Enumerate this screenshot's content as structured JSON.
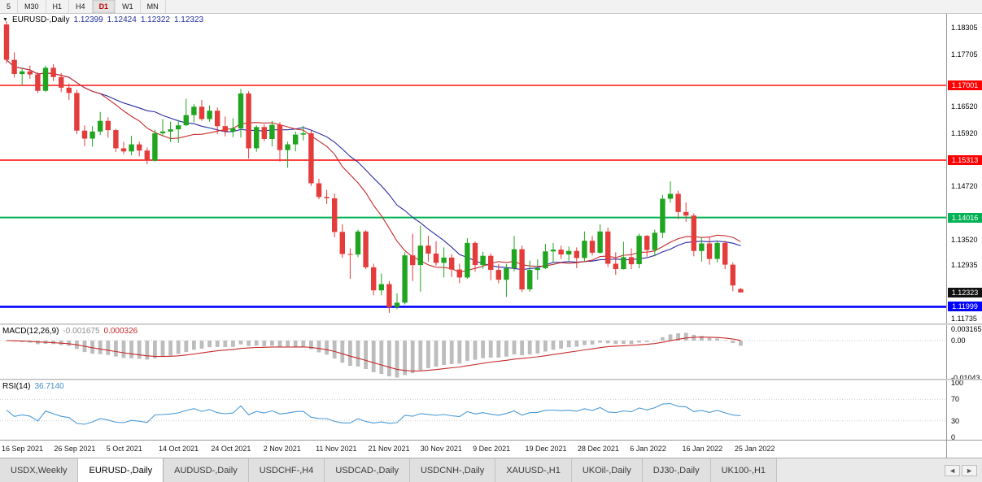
{
  "toolbar": {
    "timeframes": [
      {
        "label": "5",
        "active": false
      },
      {
        "label": "M30",
        "active": false
      },
      {
        "label": "H1",
        "active": false
      },
      {
        "label": "H4",
        "active": false
      },
      {
        "label": "D1",
        "active": true
      },
      {
        "label": "W1",
        "active": false
      },
      {
        "label": "MN",
        "active": false
      }
    ]
  },
  "chart_header": {
    "dropdown_glyph": "▼",
    "symbol": "EURUSD-,Daily",
    "open": "1.12399",
    "high": "1.12424",
    "low": "1.12322",
    "close": "1.12323"
  },
  "indicators": {
    "macd": {
      "label": "MACD(12,26,9)",
      "value_main": "-0.001675",
      "value_signal": "0.000326"
    },
    "rsi": {
      "label": "RSI(14)",
      "value": "36.7140"
    }
  },
  "axes": {
    "price_labels": [
      "1.18305",
      "1.17705",
      "1.16520",
      "1.15920",
      "1.14720",
      "1.13520",
      "1.12935",
      "1.11735"
    ],
    "macd_labels": [
      "0.003165",
      "0.00",
      "-0.01043"
    ],
    "rsi_labels": [
      "100",
      "70",
      "30",
      "0"
    ],
    "rsi_level_lines": [
      70,
      30
    ]
  },
  "levels": [
    {
      "name": "resistance-line-upper",
      "value": 1.17001,
      "label": "1.17001",
      "color": "#fe0000",
      "width": 1.4
    },
    {
      "name": "resistance-line-lower",
      "value": 1.15313,
      "label": "1.15313",
      "color": "#fe0000",
      "width": 1.4
    },
    {
      "name": "support-line-green",
      "value": 1.14016,
      "label": "1.14016",
      "color": "#00b253",
      "width": 2
    },
    {
      "name": "support-line-blue",
      "value": 1.11999,
      "label": "1.11999",
      "color": "#0000fe",
      "width": 2.6
    }
  ],
  "current_price": {
    "name": "current-price-badge",
    "value": 1.12323,
    "label": "1.12323",
    "color": "#111111"
  },
  "time_axis": [
    "16 Sep 2021",
    "26 Sep 2021",
    "5 Oct 2021",
    "14 Oct 2021",
    "24 Oct 2021",
    "2 Nov 2021",
    "11 Nov 2021",
    "21 Nov 2021",
    "30 Nov 2021",
    "9 Dec 2021",
    "19 Dec 2021",
    "28 Dec 2021",
    "6 Jan 2022",
    "16 Jan 2022",
    "25 Jan 2022"
  ],
  "tabs": [
    {
      "label": "USDX,Weekly",
      "active": false
    },
    {
      "label": "EURUSD-,Daily",
      "active": true
    },
    {
      "label": "AUDUSD-,Daily",
      "active": false
    },
    {
      "label": "USDCHF-,H4",
      "active": false
    },
    {
      "label": "USDCAD-,Daily",
      "active": false
    },
    {
      "label": "USDCNH-,Daily",
      "active": false
    },
    {
      "label": "XAUUSD-,H1",
      "active": false
    },
    {
      "label": "UKOil-,Daily",
      "active": false
    },
    {
      "label": "DJ30-,Daily",
      "active": false
    },
    {
      "label": "UK100-,H1",
      "active": false
    }
  ],
  "tab_scroll": {
    "left": "◄",
    "right": "►"
  },
  "chart_data": {
    "type": "candlestick",
    "symbol": "EURUSD",
    "timeframe": "Daily",
    "title": "EURUSD-,Daily",
    "price_domain": [
      1.1162,
      1.1862
    ],
    "macd_domain": [
      -0.0106,
      0.0043
    ],
    "rsi_domain": [
      -5,
      105
    ],
    "up_color": "#1fa51f",
    "down_color": "#e43b3b",
    "ma_fast": {
      "period": 13,
      "color": "#c52b2b"
    },
    "ma_slow": {
      "period": 20,
      "color": "#2929a3"
    },
    "macd_colors": {
      "hist": "#bdbdbd",
      "signal": "#c52b2b"
    },
    "rsi_color": "#4b9bd7",
    "macd_settings": [
      12,
      26,
      9
    ],
    "rsi_period": 14,
    "candles": [
      [
        1.1838,
        1.1845,
        1.175,
        1.1758
      ],
      [
        1.1758,
        1.1775,
        1.1718,
        1.1726
      ],
      [
        1.1726,
        1.174,
        1.17,
        1.1732
      ],
      [
        1.1732,
        1.1745,
        1.1715,
        1.1725
      ],
      [
        1.1725,
        1.173,
        1.1683,
        1.1688
      ],
      [
        1.1688,
        1.1745,
        1.1685,
        1.174
      ],
      [
        1.174,
        1.1748,
        1.171,
        1.1719
      ],
      [
        1.1719,
        1.1728,
        1.1685,
        1.1695
      ],
      [
        1.1695,
        1.1705,
        1.1667,
        1.1683
      ],
      [
        1.1683,
        1.169,
        1.159,
        1.1598
      ],
      [
        1.1598,
        1.161,
        1.1563,
        1.158
      ],
      [
        1.158,
        1.1608,
        1.1562,
        1.1596
      ],
      [
        1.1596,
        1.164,
        1.1588,
        1.162
      ],
      [
        1.162,
        1.1628,
        1.1582,
        1.1599
      ],
      [
        1.1599,
        1.1602,
        1.155,
        1.1558
      ],
      [
        1.1558,
        1.1572,
        1.1545,
        1.1551
      ],
      [
        1.1551,
        1.1586,
        1.1542,
        1.1567
      ],
      [
        1.1567,
        1.1573,
        1.154,
        1.1553
      ],
      [
        1.1553,
        1.156,
        1.1522,
        1.153
      ],
      [
        1.153,
        1.16,
        1.1528,
        1.1592
      ],
      [
        1.1592,
        1.1624,
        1.1585,
        1.1596
      ],
      [
        1.1596,
        1.1618,
        1.1572,
        1.1601
      ],
      [
        1.1601,
        1.1622,
        1.157,
        1.161
      ],
      [
        1.161,
        1.167,
        1.1608,
        1.1633
      ],
      [
        1.1633,
        1.1658,
        1.1617,
        1.1652
      ],
      [
        1.1652,
        1.1667,
        1.162,
        1.1624
      ],
      [
        1.1624,
        1.1655,
        1.1618,
        1.1643
      ],
      [
        1.1643,
        1.165,
        1.159,
        1.1608
      ],
      [
        1.1608,
        1.163,
        1.1585,
        1.1596
      ],
      [
        1.1596,
        1.1626,
        1.1583,
        1.1603
      ],
      [
        1.1603,
        1.1692,
        1.1582,
        1.1682
      ],
      [
        1.1682,
        1.1687,
        1.1535,
        1.1558
      ],
      [
        1.1558,
        1.161,
        1.155,
        1.1606
      ],
      [
        1.1606,
        1.1612,
        1.1574,
        1.1579
      ],
      [
        1.1579,
        1.162,
        1.1562,
        1.1611
      ],
      [
        1.1611,
        1.1617,
        1.1528,
        1.1554
      ],
      [
        1.1554,
        1.1573,
        1.1514,
        1.1567
      ],
      [
        1.1567,
        1.1596,
        1.1551,
        1.1589
      ],
      [
        1.1589,
        1.1609,
        1.1576,
        1.1592
      ],
      [
        1.1592,
        1.1598,
        1.1473,
        1.1479
      ],
      [
        1.1479,
        1.1489,
        1.1443,
        1.1448
      ],
      [
        1.1448,
        1.1464,
        1.1432,
        1.1445
      ],
      [
        1.1445,
        1.1456,
        1.1357,
        1.1369
      ],
      [
        1.1369,
        1.1386,
        1.131,
        1.1319
      ],
      [
        1.1319,
        1.1332,
        1.1263,
        1.1318
      ],
      [
        1.1318,
        1.1374,
        1.1312,
        1.137
      ],
      [
        1.137,
        1.1373,
        1.1285,
        1.1289
      ],
      [
        1.1289,
        1.1297,
        1.1226,
        1.1237
      ],
      [
        1.1237,
        1.1275,
        1.1226,
        1.1251
      ],
      [
        1.1251,
        1.1258,
        1.1186,
        1.1199
      ],
      [
        1.1199,
        1.123,
        1.1194,
        1.1209
      ],
      [
        1.1209,
        1.1323,
        1.1205,
        1.1316
      ],
      [
        1.1316,
        1.1365,
        1.1258,
        1.1294
      ],
      [
        1.1294,
        1.1383,
        1.1234,
        1.1338
      ],
      [
        1.1338,
        1.136,
        1.1302,
        1.132
      ],
      [
        1.132,
        1.1348,
        1.1293,
        1.1299
      ],
      [
        1.1299,
        1.1334,
        1.1266,
        1.1311
      ],
      [
        1.1311,
        1.1319,
        1.1267,
        1.1284
      ],
      [
        1.1284,
        1.1297,
        1.1253,
        1.1266
      ],
      [
        1.1266,
        1.1355,
        1.1263,
        1.1344
      ],
      [
        1.1344,
        1.1348,
        1.1279,
        1.1294
      ],
      [
        1.1294,
        1.1324,
        1.1286,
        1.1315
      ],
      [
        1.1315,
        1.132,
        1.126,
        1.1283
      ],
      [
        1.1283,
        1.1297,
        1.1253,
        1.1261
      ],
      [
        1.1261,
        1.1296,
        1.1222,
        1.1287
      ],
      [
        1.1287,
        1.136,
        1.128,
        1.133
      ],
      [
        1.133,
        1.1338,
        1.1233,
        1.1239
      ],
      [
        1.1239,
        1.1304,
        1.1234,
        1.1283
      ],
      [
        1.1283,
        1.1307,
        1.1261,
        1.1287
      ],
      [
        1.1287,
        1.1342,
        1.1285,
        1.1325
      ],
      [
        1.1325,
        1.1344,
        1.1299,
        1.1329
      ],
      [
        1.1329,
        1.1338,
        1.1308,
        1.1318
      ],
      [
        1.1318,
        1.1336,
        1.1304,
        1.1326
      ],
      [
        1.1326,
        1.1334,
        1.1287,
        1.131
      ],
      [
        1.131,
        1.137,
        1.1303,
        1.1349
      ],
      [
        1.1349,
        1.136,
        1.1316,
        1.1322
      ],
      [
        1.1322,
        1.1386,
        1.132,
        1.137
      ],
      [
        1.137,
        1.1379,
        1.129,
        1.1297
      ],
      [
        1.1297,
        1.1323,
        1.1272,
        1.1285
      ],
      [
        1.1285,
        1.1347,
        1.1284,
        1.1312
      ],
      [
        1.1312,
        1.1332,
        1.1285,
        1.1296
      ],
      [
        1.1296,
        1.1365,
        1.1287,
        1.136
      ],
      [
        1.136,
        1.1362,
        1.1313,
        1.1328
      ],
      [
        1.1328,
        1.1374,
        1.1314,
        1.1367
      ],
      [
        1.1367,
        1.1453,
        1.1355,
        1.1444
      ],
      [
        1.1444,
        1.1483,
        1.1435,
        1.1455
      ],
      [
        1.1455,
        1.1462,
        1.1398,
        1.1414
      ],
      [
        1.1414,
        1.1436,
        1.1392,
        1.1406
      ],
      [
        1.1406,
        1.1411,
        1.1314,
        1.1326
      ],
      [
        1.1326,
        1.1357,
        1.1302,
        1.1343
      ],
      [
        1.1343,
        1.1359,
        1.1295,
        1.1308
      ],
      [
        1.1308,
        1.1348,
        1.13,
        1.1344
      ],
      [
        1.1344,
        1.1349,
        1.1285,
        1.1295
      ],
      [
        1.1295,
        1.13,
        1.1235,
        1.1248
      ],
      [
        1.12399,
        1.12424,
        1.12322,
        1.12323
      ]
    ]
  }
}
